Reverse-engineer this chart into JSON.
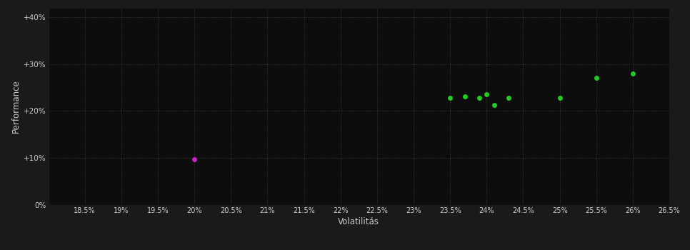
{
  "background_color": "#1a1a1a",
  "plot_bg_color": "#0d0d0d",
  "grid_color": "#404040",
  "text_color": "#cccccc",
  "xlabel": "Volatilitás",
  "ylabel": "Performance",
  "xlim": [
    0.18,
    0.265
  ],
  "ylim": [
    0.0,
    0.42
  ],
  "xticks": [
    0.185,
    0.19,
    0.195,
    0.2,
    0.205,
    0.21,
    0.215,
    0.22,
    0.225,
    0.23,
    0.235,
    0.24,
    0.245,
    0.25,
    0.255,
    0.26,
    0.265
  ],
  "yticks": [
    0.0,
    0.1,
    0.2,
    0.3,
    0.4
  ],
  "ytick_labels": [
    "0%",
    "+10%",
    "+20%",
    "+30%",
    "+40%"
  ],
  "xtick_labels": [
    "18.5%",
    "19%",
    "19.5%",
    "20%",
    "20.5%",
    "21%",
    "21.5%",
    "22%",
    "22.5%",
    "23%",
    "23.5%",
    "24%",
    "24.5%",
    "25%",
    "25.5%",
    "26%",
    "26.5%"
  ],
  "green_points": [
    [
      0.235,
      0.228
    ],
    [
      0.237,
      0.231
    ],
    [
      0.239,
      0.228
    ],
    [
      0.24,
      0.235
    ],
    [
      0.241,
      0.213
    ],
    [
      0.243,
      0.228
    ],
    [
      0.25,
      0.228
    ],
    [
      0.255,
      0.27
    ],
    [
      0.26,
      0.28
    ]
  ],
  "magenta_points": [
    [
      0.2,
      0.097
    ]
  ],
  "green_color": "#22cc22",
  "magenta_color": "#cc22cc",
  "marker_size": 5,
  "figsize": [
    9.66,
    3.5
  ],
  "dpi": 100
}
